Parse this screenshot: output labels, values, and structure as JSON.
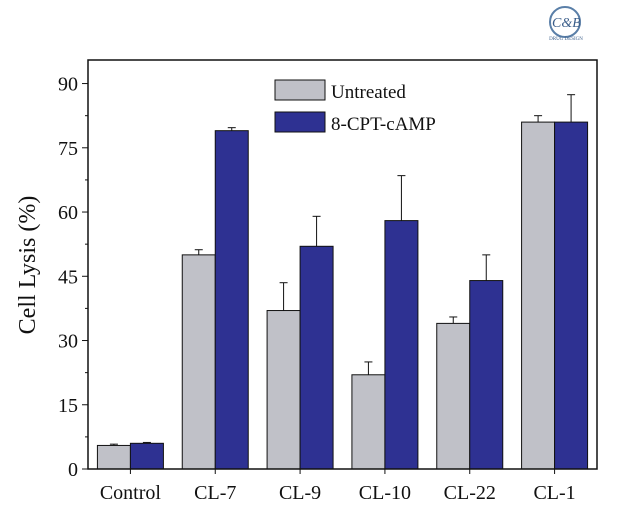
{
  "logo": {
    "text": "C&B",
    "subtext": "DRUG DESIGN"
  },
  "chart_data": {
    "type": "bar",
    "title": "",
    "xlabel": "",
    "ylabel": "Cell Lysis (%)",
    "ylim": [
      0,
      95.5
    ],
    "yticks": [
      0,
      15,
      30,
      45,
      60,
      75,
      90
    ],
    "categories": [
      "Control",
      "CL-7",
      "CL-9",
      "CL-10",
      "CL-22",
      "CL-1"
    ],
    "series": [
      {
        "name": "Untreated",
        "color": "#c0c1c8",
        "values": [
          5.5,
          50,
          37,
          22,
          34,
          81
        ],
        "errors": [
          0.3,
          1.2,
          6.5,
          3,
          1.5,
          1.5
        ]
      },
      {
        "name": "8-CPT-cAMP",
        "color": "#2e3192",
        "values": [
          6,
          79,
          52,
          58,
          44,
          81
        ],
        "errors": [
          0.2,
          0.7,
          7,
          10.5,
          6,
          6.4
        ]
      }
    ],
    "legend": "top-center",
    "grid": false
  }
}
